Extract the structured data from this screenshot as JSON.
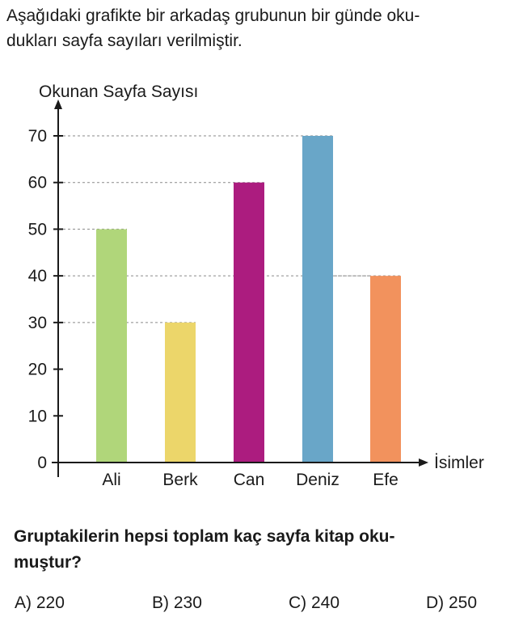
{
  "intro": {
    "line1": "Aşağıdaki grafikte bir arkadaş grubunun bir günde oku-",
    "line2": "dukları sayfa sayıları verilmiştir."
  },
  "chart_data": {
    "type": "bar",
    "ylabel": "Okunan Sayfa Sayısı",
    "xlabel": "İsimler",
    "categories": [
      "Ali",
      "Berk",
      "Can",
      "Deniz",
      "Efe"
    ],
    "values": [
      50,
      30,
      60,
      70,
      40
    ],
    "colors": [
      "#b0d67a",
      "#ecd66a",
      "#ac1c7f",
      "#69a6c8",
      "#f2925d"
    ],
    "ylim": [
      0,
      70
    ],
    "yticks": [
      0,
      10,
      20,
      30,
      40,
      50,
      60,
      70
    ],
    "guide_lines": "dashed"
  },
  "question": {
    "line1": "Gruptakilerin hepsi toplam kaç sayfa kitap oku-",
    "line2": "muştur?"
  },
  "options": [
    "A) 220",
    "B) 230",
    "C) 240",
    "D) 250"
  ]
}
